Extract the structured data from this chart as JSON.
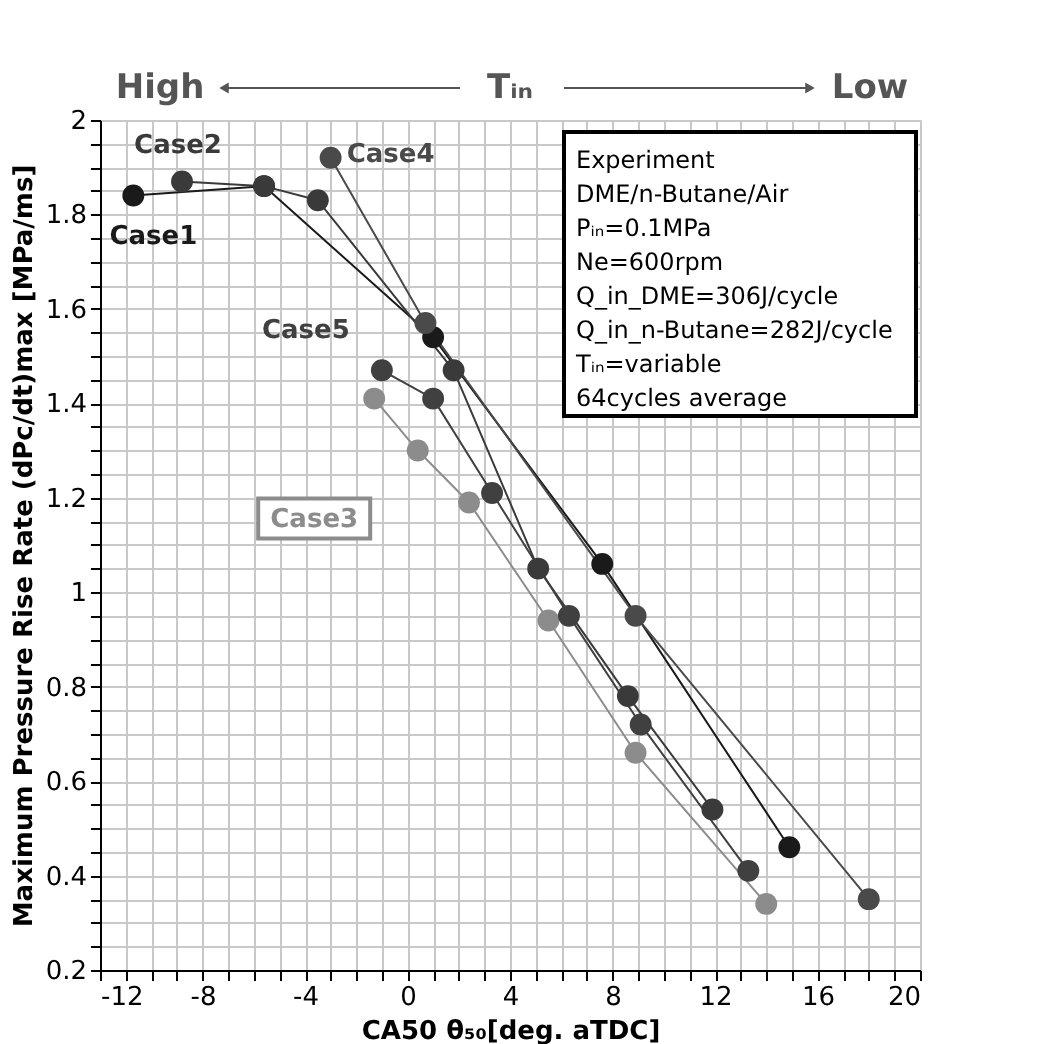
{
  "chart_data": {
    "type": "line",
    "xlabel": "CA50 θ₅₀[deg. aTDC]",
    "ylabel": "Maximum Pressure Rise Rate (dPc/dt)max [MPa/ms]",
    "marker": "circle",
    "line_style": "solid",
    "grid": true,
    "legend": false,
    "xlim": [
      -12,
      20
    ],
    "ylim": [
      0.2,
      2
    ],
    "xticks": [
      -12,
      {
        "value": -11,
        "label": null
      },
      {
        "value": -10,
        "label": null
      },
      {
        "value": -9,
        "label": null
      },
      -8,
      {
        "value": -7,
        "label": null
      },
      {
        "value": -6,
        "label": null
      },
      {
        "value": -5,
        "label": null
      },
      -4,
      {
        "value": -3,
        "label": null
      },
      {
        "value": -2,
        "label": null
      },
      {
        "value": -1,
        "label": null
      },
      0,
      {
        "value": 1,
        "label": null
      },
      {
        "value": 2,
        "label": null
      },
      {
        "value": 3,
        "label": null
      },
      4,
      {
        "value": 5,
        "label": null
      },
      {
        "value": 6,
        "label": null
      },
      {
        "value": 7,
        "label": null
      },
      8,
      {
        "value": 9,
        "label": null
      },
      {
        "value": 10,
        "label": null
      },
      {
        "value": 11,
        "label": null
      },
      12,
      {
        "value": 13,
        "label": null
      },
      {
        "value": 14,
        "label": null
      },
      {
        "value": 15,
        "label": null
      },
      16,
      {
        "value": 17,
        "label": null
      },
      {
        "value": 18,
        "label": null
      },
      {
        "value": 19,
        "label": null
      },
      20
    ],
    "yticks": [
      0.2,
      {
        "value": 0.25,
        "label": null
      },
      {
        "value": 0.3,
        "label": null
      },
      {
        "value": 0.35,
        "label": null
      },
      0.4,
      {
        "value": 0.45,
        "label": null
      },
      {
        "value": 0.5,
        "label": null
      },
      {
        "value": 0.55,
        "label": null
      },
      0.6,
      {
        "value": 0.65,
        "label": null
      },
      {
        "value": 0.7,
        "label": null
      },
      {
        "value": 0.75,
        "label": null
      },
      0.8,
      {
        "value": 0.85,
        "label": null
      },
      {
        "value": 0.9,
        "label": null
      },
      {
        "value": 0.95,
        "label": null
      },
      1,
      {
        "value": 1.05,
        "label": null
      },
      {
        "value": 1.1,
        "label": null
      },
      {
        "value": 1.15,
        "label": null
      },
      1.2,
      {
        "value": 1.25,
        "label": null
      },
      {
        "value": 1.3,
        "label": null
      },
      {
        "value": 1.35,
        "label": null
      },
      1.4,
      {
        "value": 1.45,
        "label": null
      },
      {
        "value": 1.5,
        "label": null
      },
      {
        "value": 1.55,
        "label": null
      },
      1.6,
      {
        "value": 1.65,
        "label": null
      },
      {
        "value": 1.7,
        "label": null
      },
      {
        "value": 1.75,
        "label": null
      },
      1.8,
      {
        "value": 1.85,
        "label": null
      },
      {
        "value": 1.9,
        "label": null
      },
      {
        "value": 1.95,
        "label": null
      },
      2
    ],
    "series": [
      {
        "name": "Case1",
        "color": "#1a1a1a",
        "x": [
          -10.7,
          -5.6,
          1.0,
          7.6,
          14.9
        ],
        "values": [
          1.84,
          1.86,
          1.54,
          1.06,
          0.46
        ]
      },
      {
        "name": "Case2",
        "color": "#3a3a3a",
        "x": [
          -8.8,
          -5.6,
          -3.5,
          1.8,
          5.1,
          8.6,
          11.9
        ],
        "values": [
          1.87,
          1.86,
          1.83,
          1.47,
          1.05,
          0.78,
          0.54
        ]
      },
      {
        "name": "Case3",
        "color": "#8c8c8c",
        "x": [
          -1.3,
          0.4,
          2.4,
          5.5,
          8.9,
          14.0
        ],
        "values": [
          1.41,
          1.3,
          1.19,
          0.94,
          0.66,
          0.34
        ]
      },
      {
        "name": "Case4",
        "color": "#4a4a4a",
        "x": [
          -3.0,
          0.7,
          8.9,
          18.0
        ],
        "values": [
          1.92,
          1.57,
          0.95,
          0.35
        ]
      },
      {
        "name": "Case5",
        "color": "#404040",
        "x": [
          -1.0,
          1.0,
          3.3,
          6.3,
          9.1,
          13.3
        ],
        "values": [
          1.47,
          1.41,
          1.21,
          0.95,
          0.72,
          0.41
        ]
      }
    ],
    "annotations": [
      "High",
      "Tᵢₙ",
      "Low",
      "Experiment",
      "DME/n-Butane/Air",
      "Pᵢₙ=0.1MPa",
      "Ne=600rpm",
      "Q_in_DME=306J/cycle",
      "Q_in_n-Butane=282J/cycle",
      "Tᵢₙ=variable",
      "64cycles average"
    ]
  }
}
